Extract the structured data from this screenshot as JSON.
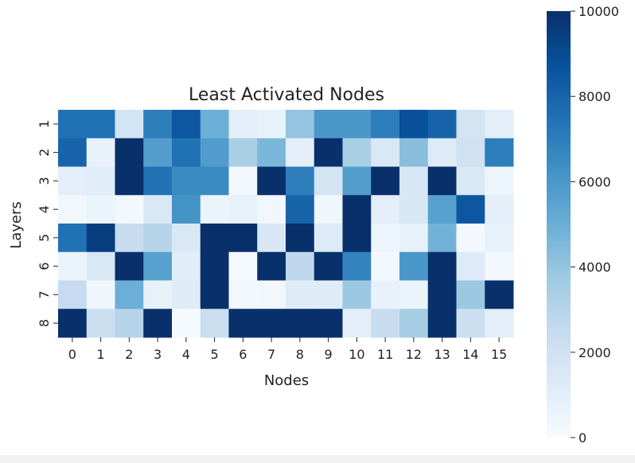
{
  "chart_data": {
    "type": "heatmap",
    "title": "Least Activated Nodes",
    "xlabel": "Nodes",
    "ylabel": "Layers",
    "x_categories": [
      "0",
      "1",
      "2",
      "3",
      "4",
      "5",
      "6",
      "7",
      "8",
      "9",
      "10",
      "11",
      "12",
      "13",
      "14",
      "15"
    ],
    "y_categories": [
      "1",
      "2",
      "3",
      "4",
      "5",
      "6",
      "7",
      "8"
    ],
    "values": [
      [
        7500,
        7500,
        1800,
        7000,
        8500,
        5000,
        900,
        800,
        4000,
        6000,
        6000,
        7000,
        8800,
        8000,
        1800,
        1000
      ],
      [
        8000,
        700,
        10000,
        5700,
        7500,
        5800,
        3400,
        4600,
        900,
        10000,
        3400,
        1500,
        4300,
        1300,
        2000,
        7000
      ],
      [
        900,
        1100,
        10000,
        7500,
        6500,
        6500,
        200,
        10000,
        7000,
        1800,
        5700,
        10000,
        1600,
        10000,
        1500,
        500
      ],
      [
        300,
        600,
        200,
        1500,
        6200,
        600,
        800,
        300,
        8000,
        400,
        10000,
        1000,
        1600,
        5600,
        8500,
        1000
      ],
      [
        7500,
        9500,
        2400,
        3000,
        1500,
        10000,
        10000,
        1600,
        10000,
        1300,
        10000,
        500,
        800,
        4800,
        200,
        800
      ],
      [
        600,
        1500,
        10000,
        5600,
        1100,
        10000,
        100,
        10000,
        2700,
        10000,
        6800,
        200,
        6000,
        10000,
        1300,
        300
      ],
      [
        2500,
        400,
        5000,
        800,
        1200,
        10000,
        200,
        300,
        1200,
        1200,
        3800,
        700,
        600,
        10000,
        3800,
        10000
      ],
      [
        10000,
        2200,
        3000,
        10000,
        100,
        2300,
        10000,
        10000,
        10000,
        10000,
        1000,
        2400,
        3500,
        10000,
        2200,
        1000
      ]
    ],
    "colorbar": {
      "min": 0,
      "max": 10000,
      "ticks": [
        "0",
        "2000",
        "4000",
        "6000",
        "8000",
        "10000"
      ]
    },
    "colormap": "Blues",
    "grid": false,
    "legend": "colorbar-right"
  }
}
